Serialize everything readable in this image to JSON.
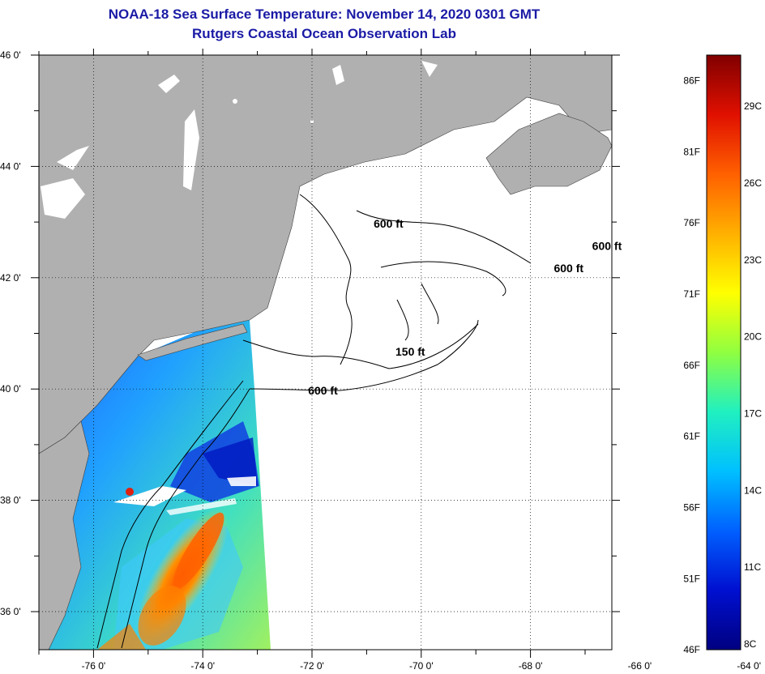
{
  "title": "NOAA-18 Sea Surface Temperature:  November 14, 2020 0301 GMT",
  "subtitle": "Rutgers Coastal Ocean Observation Lab",
  "map": {
    "lat_labels": [
      {
        "lat": 46,
        "text": "46 0'"
      },
      {
        "lat": 44,
        "text": "44 0'"
      },
      {
        "lat": 42,
        "text": "42 0'"
      },
      {
        "lat": 40,
        "text": "40 0'"
      },
      {
        "lat": 38,
        "text": "38 0'"
      },
      {
        "lat": 36,
        "text": "36 0'"
      }
    ],
    "lon_labels": [
      {
        "lon": -76,
        "text": "-76 0'"
      },
      {
        "lon": -74,
        "text": "-74 0'"
      },
      {
        "lon": -72,
        "text": "-72 0'"
      },
      {
        "lon": -70,
        "text": "-70 0'"
      },
      {
        "lon": -68,
        "text": "-68 0'"
      },
      {
        "lon": -66,
        "text": "-66 0'"
      },
      {
        "lon": -64,
        "text": "-64 0'"
      }
    ],
    "contour_labels": [
      {
        "text": "600 ft",
        "lon": -70.6,
        "lat": 42.9
      },
      {
        "text": "600 ft",
        "lon": -66.6,
        "lat": 42.5
      },
      {
        "text": "600 ft",
        "lon": -67.3,
        "lat": 42.1
      },
      {
        "text": "150 ft",
        "lon": -70.2,
        "lat": 40.6
      },
      {
        "text": "600 ft",
        "lon": -71.8,
        "lat": 39.9
      }
    ],
    "colors": {
      "land": "#b0b0b0",
      "ocean_nodata": "#ffffff",
      "frame": "#000000",
      "title": "#1a1aa6"
    }
  },
  "colorbar": {
    "fahrenheit": [
      "86F",
      "81F",
      "76F",
      "71F",
      "66F",
      "61F",
      "56F",
      "51F",
      "46F"
    ],
    "celsius": [
      "29C",
      "26C",
      "23C",
      "20C",
      "17C",
      "14C",
      "11C",
      "8C"
    ],
    "gradient": [
      "#800000",
      "#e01000",
      "#ff6000",
      "#ffb000",
      "#ffff00",
      "#90ff40",
      "#20f0c0",
      "#00c0ff",
      "#0060ff",
      "#0010d0",
      "#000080"
    ]
  }
}
